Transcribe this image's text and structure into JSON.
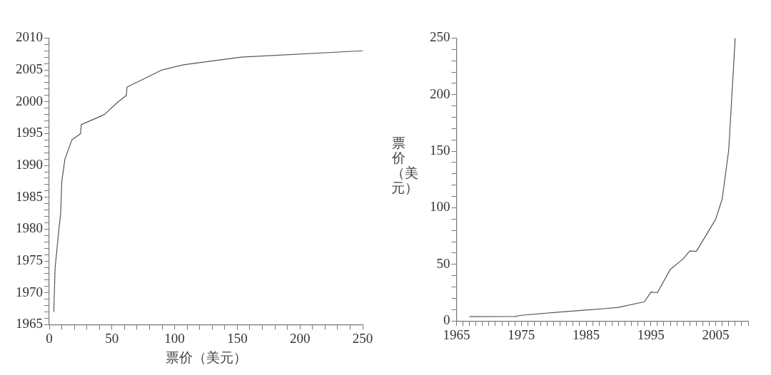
{
  "chart_data": [
    {
      "type": "line",
      "xlabel": "票价（美元）",
      "x": [
        3.6,
        4.7,
        7.7,
        9.1,
        10,
        12.5,
        18,
        25,
        25.5,
        44,
        55,
        61.5,
        62,
        90,
        107,
        153,
        250
      ],
      "series": [
        {
          "color": "#555555",
          "values": [
            1967,
            1974,
            1980,
            1982.5,
            1987.5,
            1991,
            1994,
            1995,
            1996.4,
            1998,
            2000,
            2001,
            2002.3,
            2005,
            2005.8,
            2007,
            2008
          ]
        }
      ],
      "xlim": [
        0,
        250
      ],
      "ylim": [
        1965,
        2010
      ],
      "grid": false,
      "legend": false,
      "marker": "none",
      "line_style": "solid",
      "xticks": [
        0,
        {
          "value": 10,
          "label": null
        },
        {
          "value": 20,
          "label": null
        },
        {
          "value": 30,
          "label": null
        },
        {
          "value": 40,
          "label": null
        },
        50,
        {
          "value": 60,
          "label": null
        },
        {
          "value": 70,
          "label": null
        },
        {
          "value": 80,
          "label": null
        },
        {
          "value": 90,
          "label": null
        },
        100,
        {
          "value": 110,
          "label": null
        },
        {
          "value": 120,
          "label": null
        },
        {
          "value": 130,
          "label": null
        },
        {
          "value": 140,
          "label": null
        },
        150,
        {
          "value": 160,
          "label": null
        },
        {
          "value": 170,
          "label": null
        },
        {
          "value": 180,
          "label": null
        },
        {
          "value": 190,
          "label": null
        },
        200,
        {
          "value": 210,
          "label": null
        },
        {
          "value": 220,
          "label": null
        },
        {
          "value": 230,
          "label": null
        },
        {
          "value": 240,
          "label": null
        },
        250
      ],
      "yticks": [
        1965,
        {
          "value": 1966,
          "label": null
        },
        {
          "value": 1967,
          "label": null
        },
        {
          "value": 1968,
          "label": null
        },
        {
          "value": 1969,
          "label": null
        },
        1970,
        {
          "value": 1971,
          "label": null
        },
        {
          "value": 1972,
          "label": null
        },
        {
          "value": 1973,
          "label": null
        },
        {
          "value": 1974,
          "label": null
        },
        1975,
        {
          "value": 1976,
          "label": null
        },
        {
          "value": 1977,
          "label": null
        },
        {
          "value": 1978,
          "label": null
        },
        {
          "value": 1979,
          "label": null
        },
        1980,
        {
          "value": 1981,
          "label": null
        },
        {
          "value": 1982,
          "label": null
        },
        {
          "value": 1983,
          "label": null
        },
        {
          "value": 1984,
          "label": null
        },
        1985,
        {
          "value": 1986,
          "label": null
        },
        {
          "value": 1987,
          "label": null
        },
        {
          "value": 1988,
          "label": null
        },
        {
          "value": 1989,
          "label": null
        },
        1990,
        {
          "value": 1991,
          "label": null
        },
        {
          "value": 1992,
          "label": null
        },
        {
          "value": 1993,
          "label": null
        },
        {
          "value": 1994,
          "label": null
        },
        1995,
        {
          "value": 1996,
          "label": null
        },
        {
          "value": 1997,
          "label": null
        },
        {
          "value": 1998,
          "label": null
        },
        {
          "value": 1999,
          "label": null
        },
        2000,
        {
          "value": 2001,
          "label": null
        },
        {
          "value": 2002,
          "label": null
        },
        {
          "value": 2003,
          "label": null
        },
        {
          "value": 2004,
          "label": null
        },
        2005,
        {
          "value": 2006,
          "label": null
        },
        {
          "value": 2007,
          "label": null
        },
        {
          "value": 2008,
          "label": null
        },
        {
          "value": 2009,
          "label": null
        },
        2010
      ]
    },
    {
      "type": "line",
      "ylabel": "票价（美元）",
      "x": [
        1967,
        1974,
        1975,
        1980,
        1985,
        1988,
        1990,
        1994,
        1995,
        1996,
        1998,
        2000,
        2001,
        2002,
        2005,
        2006,
        2007,
        2008
      ],
      "series": [
        {
          "color": "#555555",
          "values": [
            3.8,
            4,
            5,
            7.5,
            9.6,
            11,
            12,
            17,
            25.6,
            25,
            45.7,
            55,
            62,
            61.5,
            90,
            108,
            151,
            250
          ]
        }
      ],
      "xlim": [
        1965,
        2010
      ],
      "ylim": [
        0,
        250
      ],
      "grid": false,
      "legend": false,
      "marker": "none",
      "line_style": "solid",
      "xticks": [
        1965,
        {
          "value": 1966,
          "label": null
        },
        {
          "value": 1967,
          "label": null
        },
        {
          "value": 1968,
          "label": null
        },
        {
          "value": 1969,
          "label": null
        },
        {
          "value": 1970,
          "label": null
        },
        {
          "value": 1971,
          "label": null
        },
        {
          "value": 1972,
          "label": null
        },
        {
          "value": 1973,
          "label": null
        },
        {
          "value": 1974,
          "label": null
        },
        1975,
        {
          "value": 1976,
          "label": null
        },
        {
          "value": 1977,
          "label": null
        },
        {
          "value": 1978,
          "label": null
        },
        {
          "value": 1979,
          "label": null
        },
        {
          "value": 1980,
          "label": null
        },
        {
          "value": 1981,
          "label": null
        },
        {
          "value": 1982,
          "label": null
        },
        {
          "value": 1983,
          "label": null
        },
        {
          "value": 1984,
          "label": null
        },
        1985,
        {
          "value": 1986,
          "label": null
        },
        {
          "value": 1987,
          "label": null
        },
        {
          "value": 1988,
          "label": null
        },
        {
          "value": 1989,
          "label": null
        },
        {
          "value": 1990,
          "label": null
        },
        {
          "value": 1991,
          "label": null
        },
        {
          "value": 1992,
          "label": null
        },
        {
          "value": 1993,
          "label": null
        },
        {
          "value": 1994,
          "label": null
        },
        1995,
        {
          "value": 1996,
          "label": null
        },
        {
          "value": 1997,
          "label": null
        },
        {
          "value": 1998,
          "label": null
        },
        {
          "value": 1999,
          "label": null
        },
        {
          "value": 2000,
          "label": null
        },
        {
          "value": 2001,
          "label": null
        },
        {
          "value": 2002,
          "label": null
        },
        {
          "value": 2003,
          "label": null
        },
        {
          "value": 2004,
          "label": null
        },
        2005,
        {
          "value": 2006,
          "label": null
        },
        {
          "value": 2007,
          "label": null
        },
        {
          "value": 2008,
          "label": null
        },
        {
          "value": 2009,
          "label": null
        },
        {
          "value": 2010,
          "label": null
        }
      ],
      "yticks": [
        0,
        {
          "value": 10,
          "label": null
        },
        {
          "value": 20,
          "label": null
        },
        {
          "value": 30,
          "label": null
        },
        {
          "value": 40,
          "label": null
        },
        50,
        {
          "value": 60,
          "label": null
        },
        {
          "value": 70,
          "label": null
        },
        {
          "value": 80,
          "label": null
        },
        {
          "value": 90,
          "label": null
        },
        100,
        {
          "value": 110,
          "label": null
        },
        {
          "value": 120,
          "label": null
        },
        {
          "value": 130,
          "label": null
        },
        {
          "value": 140,
          "label": null
        },
        150,
        {
          "value": 160,
          "label": null
        },
        {
          "value": 170,
          "label": null
        },
        {
          "value": 180,
          "label": null
        },
        {
          "value": 190,
          "label": null
        },
        200,
        {
          "value": 210,
          "label": null
        },
        {
          "value": 220,
          "label": null
        },
        {
          "value": 230,
          "label": null
        },
        {
          "value": 240,
          "label": null
        },
        250
      ]
    }
  ]
}
